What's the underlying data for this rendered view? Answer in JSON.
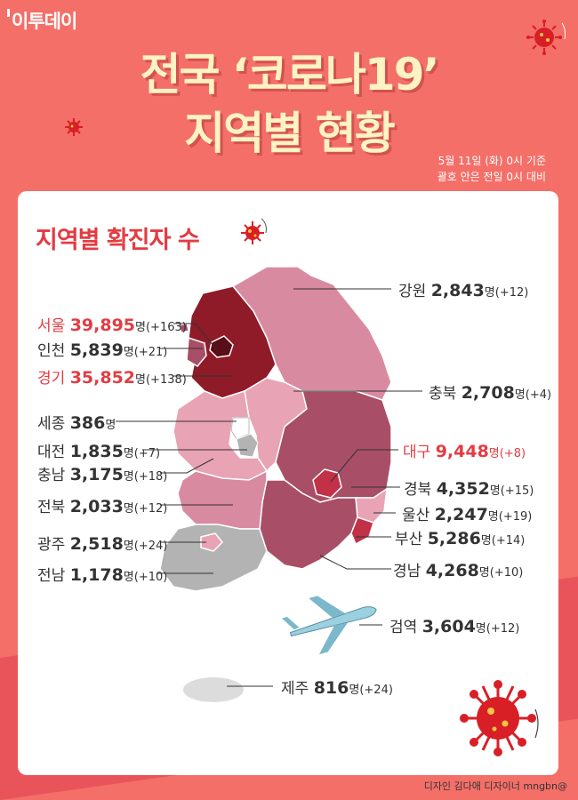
{
  "brand": "이투데이",
  "title_line1": "전국 ‘코로나19’",
  "title_line2": "지역별 현황",
  "date_line1": "5월 11일 (화) 0시 기준",
  "date_line2": "괄호 안은 전일 0시 대비",
  "card_title": "지역별 확진자 수",
  "unit": "명",
  "regions": [
    {
      "name": "강원",
      "count": "2,843",
      "delta": "(+12)",
      "highlight": false
    },
    {
      "name": "서울",
      "count": "39,895",
      "delta": "(+163)",
      "highlight": true
    },
    {
      "name": "인천",
      "count": "5,839",
      "delta": "(+21)",
      "highlight": false
    },
    {
      "name": "경기",
      "count": "35,852",
      "delta": "(+138)",
      "highlight": true
    },
    {
      "name": "충북",
      "count": "2,708",
      "delta": "(+4)",
      "highlight": false
    },
    {
      "name": "세종",
      "count": "386",
      "delta": "",
      "highlight": false
    },
    {
      "name": "대전",
      "count": "1,835",
      "delta": "(+7)",
      "highlight": false
    },
    {
      "name": "대구",
      "count": "9,448",
      "delta": "(+8)",
      "highlight": true
    },
    {
      "name": "충남",
      "count": "3,175",
      "delta": "(+18)",
      "highlight": false
    },
    {
      "name": "경북",
      "count": "4,352",
      "delta": "(+15)",
      "highlight": false
    },
    {
      "name": "전북",
      "count": "2,033",
      "delta": "(+12)",
      "highlight": false
    },
    {
      "name": "울산",
      "count": "2,247",
      "delta": "(+19)",
      "highlight": false
    },
    {
      "name": "부산",
      "count": "5,286",
      "delta": "(+14)",
      "highlight": false
    },
    {
      "name": "광주",
      "count": "2,518",
      "delta": "(+24)",
      "highlight": false
    },
    {
      "name": "경남",
      "count": "4,268",
      "delta": "(+10)",
      "highlight": false
    },
    {
      "name": "전남",
      "count": "1,178",
      "delta": "(+10)",
      "highlight": false
    },
    {
      "name": "검역",
      "count": "3,604",
      "delta": "(+12)",
      "highlight": false
    },
    {
      "name": "제주",
      "count": "816",
      "delta": "(+24)",
      "highlight": false
    }
  ],
  "credit": "디자인 김다애 디자이너 mngbn@",
  "icons": {
    "virus": "virus-icon",
    "airplane": "airplane-icon"
  },
  "colors": {
    "background": "#f46f68",
    "title": "#fdf3c3",
    "highlight": "#e33c43",
    "map_dark": "#8e1b27",
    "map_mid": "#a94e67",
    "map_light": "#e8a3b4",
    "map_gray": "#b3b3b3"
  }
}
